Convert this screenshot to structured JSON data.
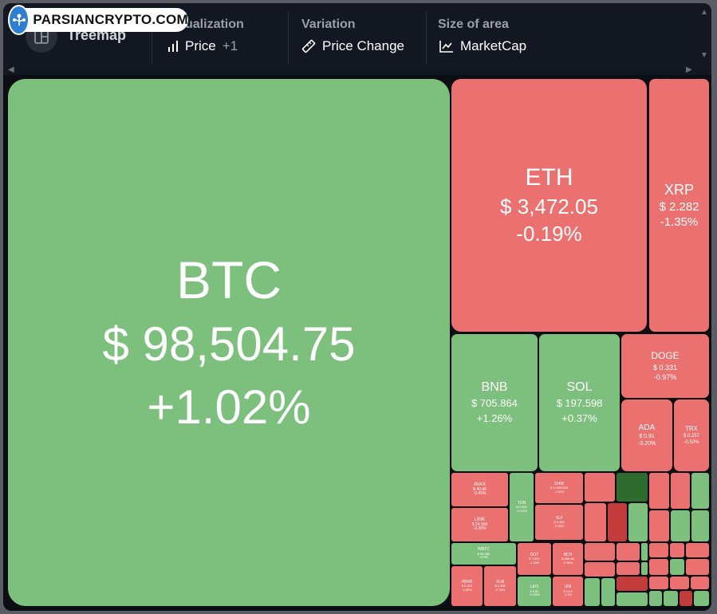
{
  "header": {
    "logo_text": "PARSIANCRYPTO.COM",
    "view_label": "Treemap",
    "visualization": {
      "title": "Visualization",
      "title_visible": "ualization",
      "value": "Price",
      "extra": "+1"
    },
    "variation": {
      "title": "Variation",
      "value": "Price Change"
    },
    "size": {
      "title": "Size of area",
      "value": "MarketCap"
    }
  },
  "colors": {
    "up": "#7dc07d",
    "down": "#eb7070",
    "strong_up": "#2e6b2e",
    "strong_down": "#c23c3c",
    "background": "#0b0e13",
    "header": "#131722"
  },
  "tiles": {
    "btc": {
      "symbol": "BTC",
      "price": "$ 98,504.75",
      "change": "+1.02%"
    },
    "eth": {
      "symbol": "ETH",
      "price": "$ 3,472.05",
      "change": "-0.19%"
    },
    "xrp": {
      "symbol": "XRP",
      "price": "$ 2.282",
      "change": "-1.35%"
    },
    "bnb": {
      "symbol": "BNB",
      "price": "$ 705.864",
      "change": "+1.26%"
    },
    "sol": {
      "symbol": "SOL",
      "price": "$ 197.598",
      "change": "+0.37%"
    },
    "doge": {
      "symbol": "DOGE",
      "price": "$ 0.331",
      "change": "-0.97%"
    },
    "ada": {
      "symbol": "ADA",
      "price": "$ 0.91",
      "change": "-3.20%"
    },
    "trx": {
      "symbol": "TRX",
      "price": "$ 0.257",
      "change": "-0.52%"
    },
    "avax": {
      "symbol": "AVAX",
      "price": "$ 40.46",
      "change": "-0.45%"
    },
    "ton": {
      "symbol": "TON",
      "price": "$ 5.815",
      "change": "+0.04%"
    },
    "shib": {
      "symbol": "SHIB",
      "price": "$ 0.0000205",
      "change": "-1.52%"
    },
    "link": {
      "symbol": "LINK",
      "price": "$ 24.598",
      "change": "-0.36%"
    },
    "sui": {
      "symbol": "SUI",
      "price": "$ 4.482",
      "change": "-0.53%"
    },
    "wbtc": {
      "symbol": "WBTC",
      "price": "$ 98,580",
      "change": "+0.8%"
    },
    "dot": {
      "symbol": "DOT",
      "price": "$ 7.852",
      "change": "-1.43%"
    },
    "bch": {
      "symbol": "BCH",
      "price": "$ 466.83",
      "change": "-0.96%"
    },
    "hbar": {
      "symbol": "HBAR",
      "price": "$ 0.313",
      "change": "-3.45%"
    },
    "xlm": {
      "symbol": "XLM",
      "price": "$ 0.389",
      "change": "-2.34%"
    },
    "leo": {
      "symbol": "LEO",
      "price": "$ 9.81",
      "change": "+0.05%"
    },
    "uni": {
      "symbol": "UNI",
      "price": "$ 13.8",
      "change": "-1.1%"
    }
  }
}
